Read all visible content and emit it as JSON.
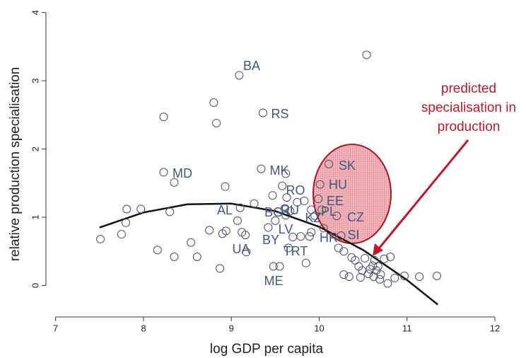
{
  "chart_data": {
    "type": "scatter",
    "xlabel": "log GDP per capita",
    "ylabel": "relative production specialisation",
    "xlim": [
      6.89,
      12.0
    ],
    "ylim": [
      -0.43,
      4.08
    ],
    "xticks": [
      7,
      8,
      9,
      10,
      11,
      12
    ],
    "yticks": [
      0,
      1,
      2,
      3,
      4
    ],
    "point_color": "#4a4f66",
    "x": [
      7.51,
      7.75,
      7.8,
      7.81,
      7.97,
      8.16,
      8.23,
      8.23,
      8.3,
      8.35,
      8.35,
      8.54,
      8.61,
      8.75,
      8.8,
      8.83,
      8.87,
      8.9,
      8.93,
      8.94,
      9.07,
      9.09,
      9.1,
      9.12,
      9.16,
      9.17,
      9.26,
      9.34,
      9.36,
      9.42,
      9.47,
      9.48,
      9.5,
      9.55,
      9.58,
      9.62,
      9.61,
      9.62,
      9.63,
      9.65,
      9.67,
      9.7,
      9.75,
      9.79,
      9.83,
      9.85,
      9.89,
      9.91,
      9.91,
      9.95,
      9.99,
      10.01,
      10.03,
      10.05,
      10.11,
      10.2,
      10.22,
      10.25,
      10.28,
      10.28,
      10.34,
      10.37,
      10.41,
      10.45,
      10.47,
      10.49,
      10.52,
      10.54,
      10.56,
      10.58,
      10.61,
      10.62,
      10.63,
      10.65,
      10.67,
      10.69,
      10.7,
      10.74,
      10.78,
      10.81,
      10.86,
      10.97,
      11.14,
      11.34
    ],
    "values": [
      0.68,
      0.75,
      0.92,
      1.12,
      1.12,
      0.52,
      2.47,
      1.66,
      1.08,
      1.51,
      0.42,
      0.63,
      0.42,
      0.81,
      2.68,
      2.38,
      0.25,
      0.76,
      1.45,
      0.8,
      0.95,
      3.08,
      1.14,
      0.78,
      0.74,
      0.49,
      1.2,
      1.71,
      2.53,
      0.85,
      1.32,
      0.28,
      0.95,
      0.28,
      1.46,
      1.64,
      1.13,
      1.03,
      1.29,
      0.55,
      1.09,
      0.71,
      1.22,
      0.72,
      1.24,
      0.33,
      0.72,
      1.11,
      0.78,
      1.02,
      1.27,
      1.48,
      1.11,
      0.84,
      1.78,
      1.02,
      0.55,
      0.73,
      0.5,
      0.16,
      0.13,
      0.41,
      0.37,
      0.28,
      0.12,
      0.22,
      0.4,
      3.38,
      0.17,
      0.24,
      0.29,
      0.13,
      0.37,
      0.22,
      0.28,
      0.09,
      0.16,
      0.39,
      0.03,
      0.42,
      0.11,
      0.14,
      0.13,
      0.14
    ],
    "fit": {
      "color": "#111111",
      "x": [
        7.5,
        8.0,
        8.5,
        9.0,
        9.5,
        10.0,
        10.5,
        11.0,
        11.35
      ],
      "values": [
        0.85,
        1.07,
        1.19,
        1.2,
        1.09,
        0.86,
        0.52,
        0.08,
        -0.28
      ]
    },
    "country_labels": [
      "BA",
      "RS",
      "MD",
      "MK",
      "RO",
      "AL",
      "BG",
      "RU",
      "EE",
      "PL",
      "KZ",
      "CZ",
      "HU",
      "SK",
      "LV",
      "BY",
      "SI",
      "HR",
      "UA",
      "TRT",
      "ME"
    ],
    "label_color": "#3d5a80",
    "annotation": {
      "lines": [
        "predicted",
        "specialisation in",
        "production"
      ],
      "color": "#c0182a"
    }
  }
}
